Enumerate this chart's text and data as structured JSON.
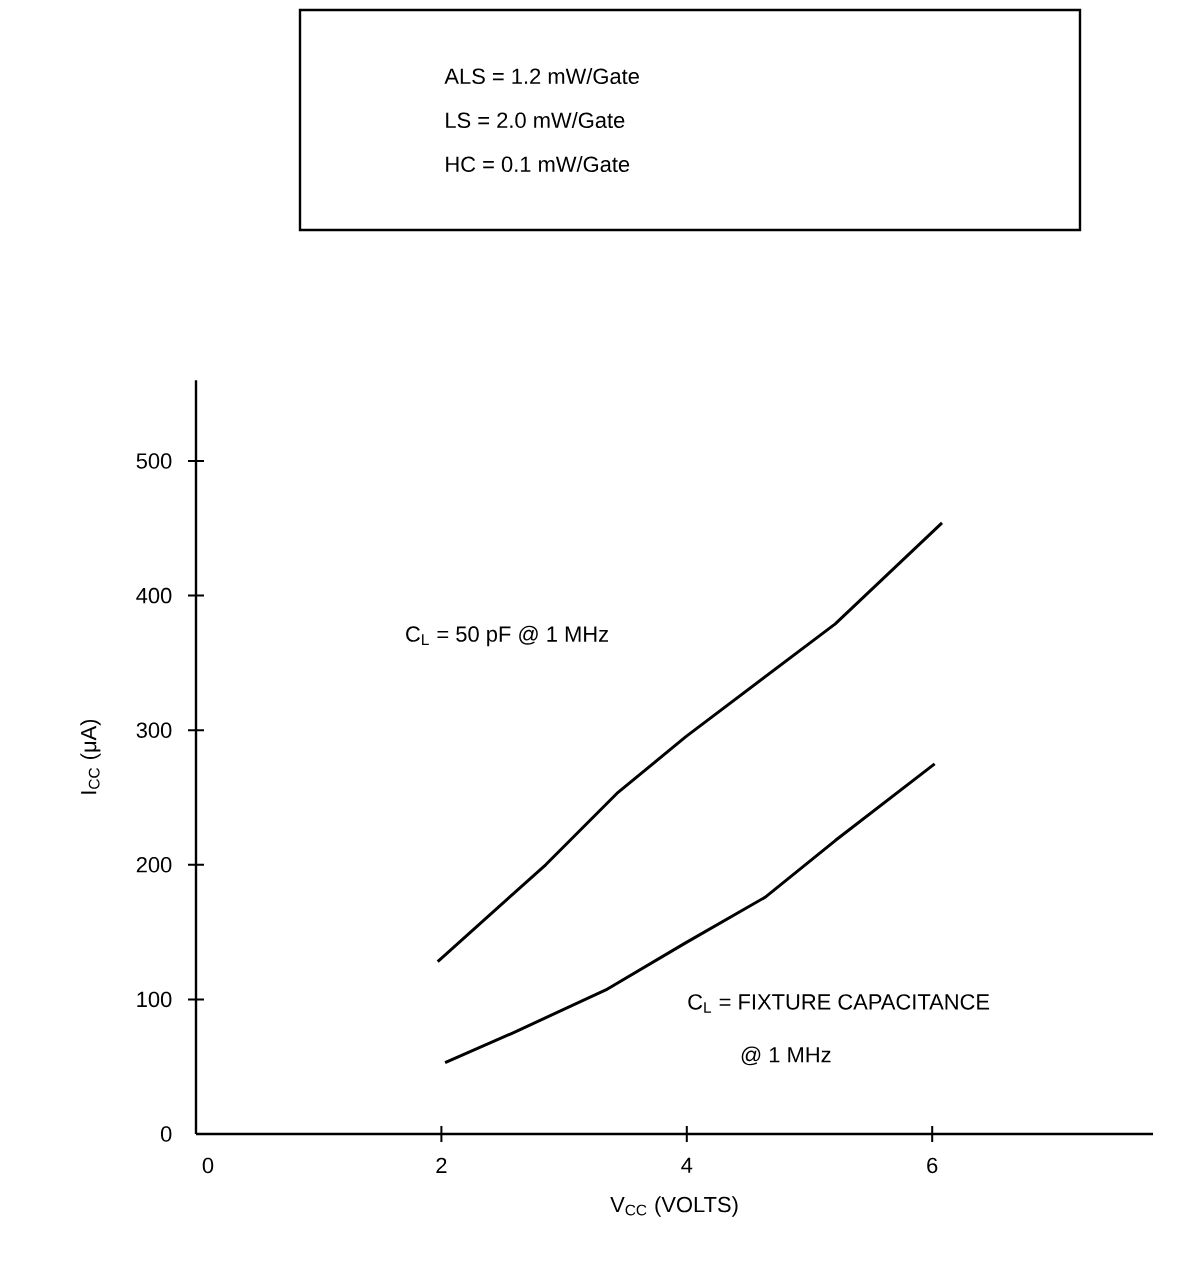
{
  "chart_data": {
    "type": "line",
    "xlabel": "V$_{CC}$ (VOLTS)",
    "ylabel": "I$_{CC}$ (μA)",
    "xlim": [
      0,
      7.8
    ],
    "ylim": [
      0,
      560
    ],
    "xticks": [
      0,
      2,
      4,
      6
    ],
    "yticks": [
      0,
      100,
      200,
      300,
      400,
      500
    ],
    "series": [
      {
        "color": "#000000",
        "x": [
          1.97,
          2.85,
          3.43,
          3.99,
          5.21,
          6.08
        ],
        "values": [
          128,
          200,
          253,
          295,
          379,
          454
        ]
      },
      {
        "color": "#000000",
        "x": [
          2.03,
          2.58,
          3.34,
          3.99,
          4.64,
          5.21,
          6.02
        ],
        "values": [
          53,
          75,
          107,
          142,
          176,
          218,
          275
        ]
      }
    ],
    "annotations": [
      "ALS = 1.2 mW/Gate",
      "LS = 2.0 mW/Gate",
      "HC = 0.1 mW/Gate",
      "C$_{L}$ = 50 pF @ 1 MHz",
      "C$_{L}$ = FIXTURE CAPACITANCE",
      "@ 1 MHz"
    ]
  }
}
